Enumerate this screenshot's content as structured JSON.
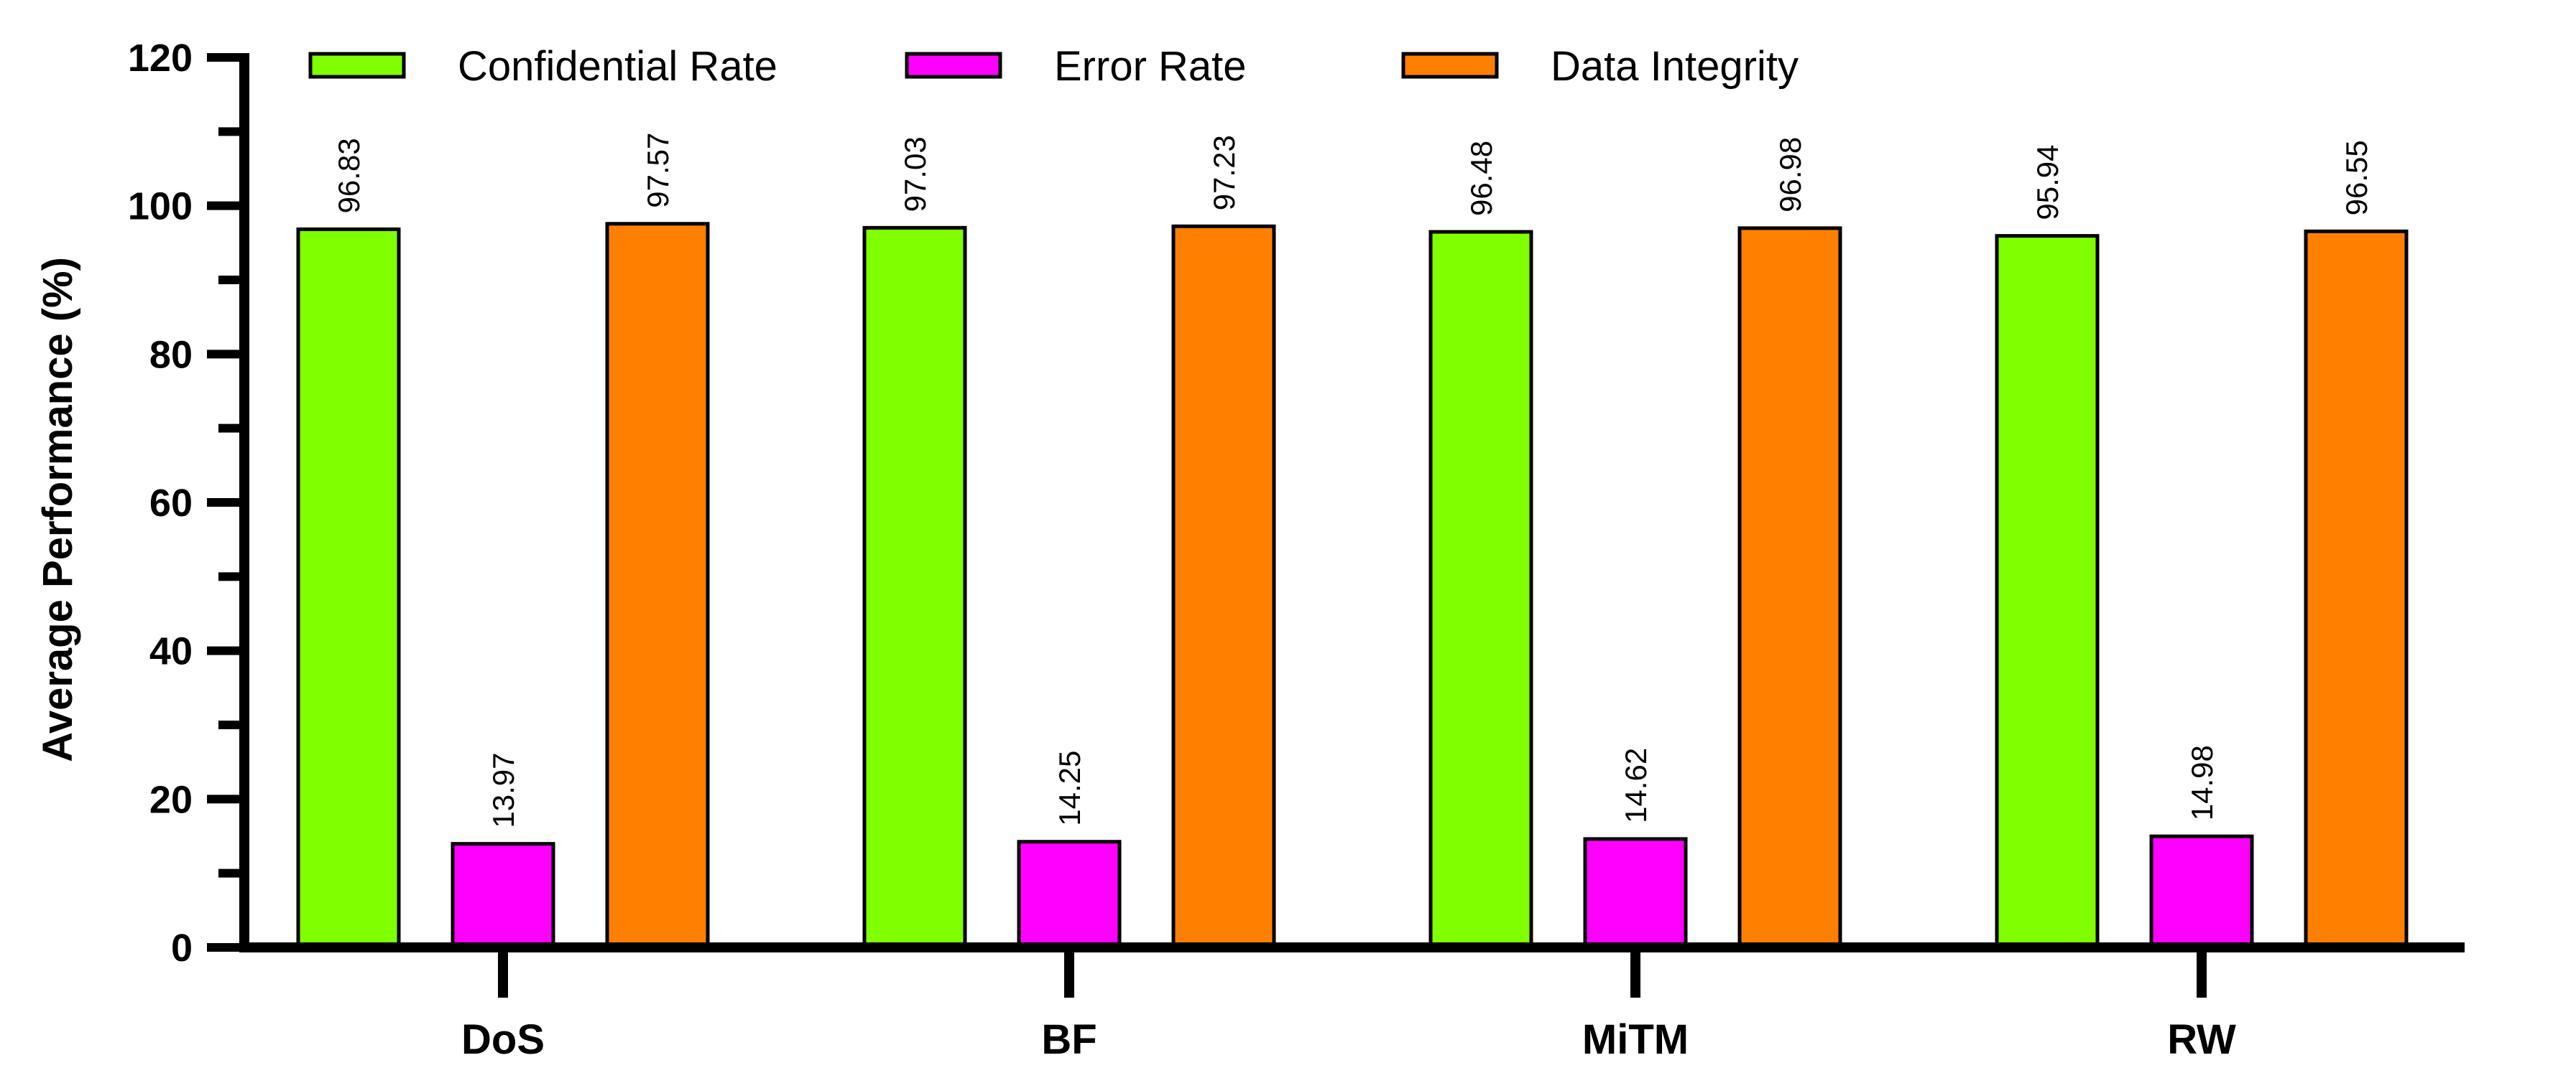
{
  "chart_data": {
    "type": "bar",
    "categories": [
      "DoS",
      "BF",
      "MiTM",
      "RW"
    ],
    "series": [
      {
        "name": "Confidential Rate",
        "color": "#7FFF00",
        "values": [
          96.83,
          97.03,
          96.48,
          95.94
        ]
      },
      {
        "name": "Error Rate",
        "color": "#FF00FF",
        "values": [
          13.97,
          14.25,
          14.62,
          14.98
        ]
      },
      {
        "name": "Data Integrity",
        "color": "#FF8000",
        "values": [
          97.57,
          97.23,
          96.98,
          96.55
        ]
      }
    ],
    "ylabel": "Average Performance (%)",
    "xlabel": "",
    "ylim": [
      0,
      120
    ],
    "yticks": [
      0,
      20,
      40,
      60,
      80,
      100,
      120
    ],
    "legend_position": "top",
    "grid": false
  }
}
